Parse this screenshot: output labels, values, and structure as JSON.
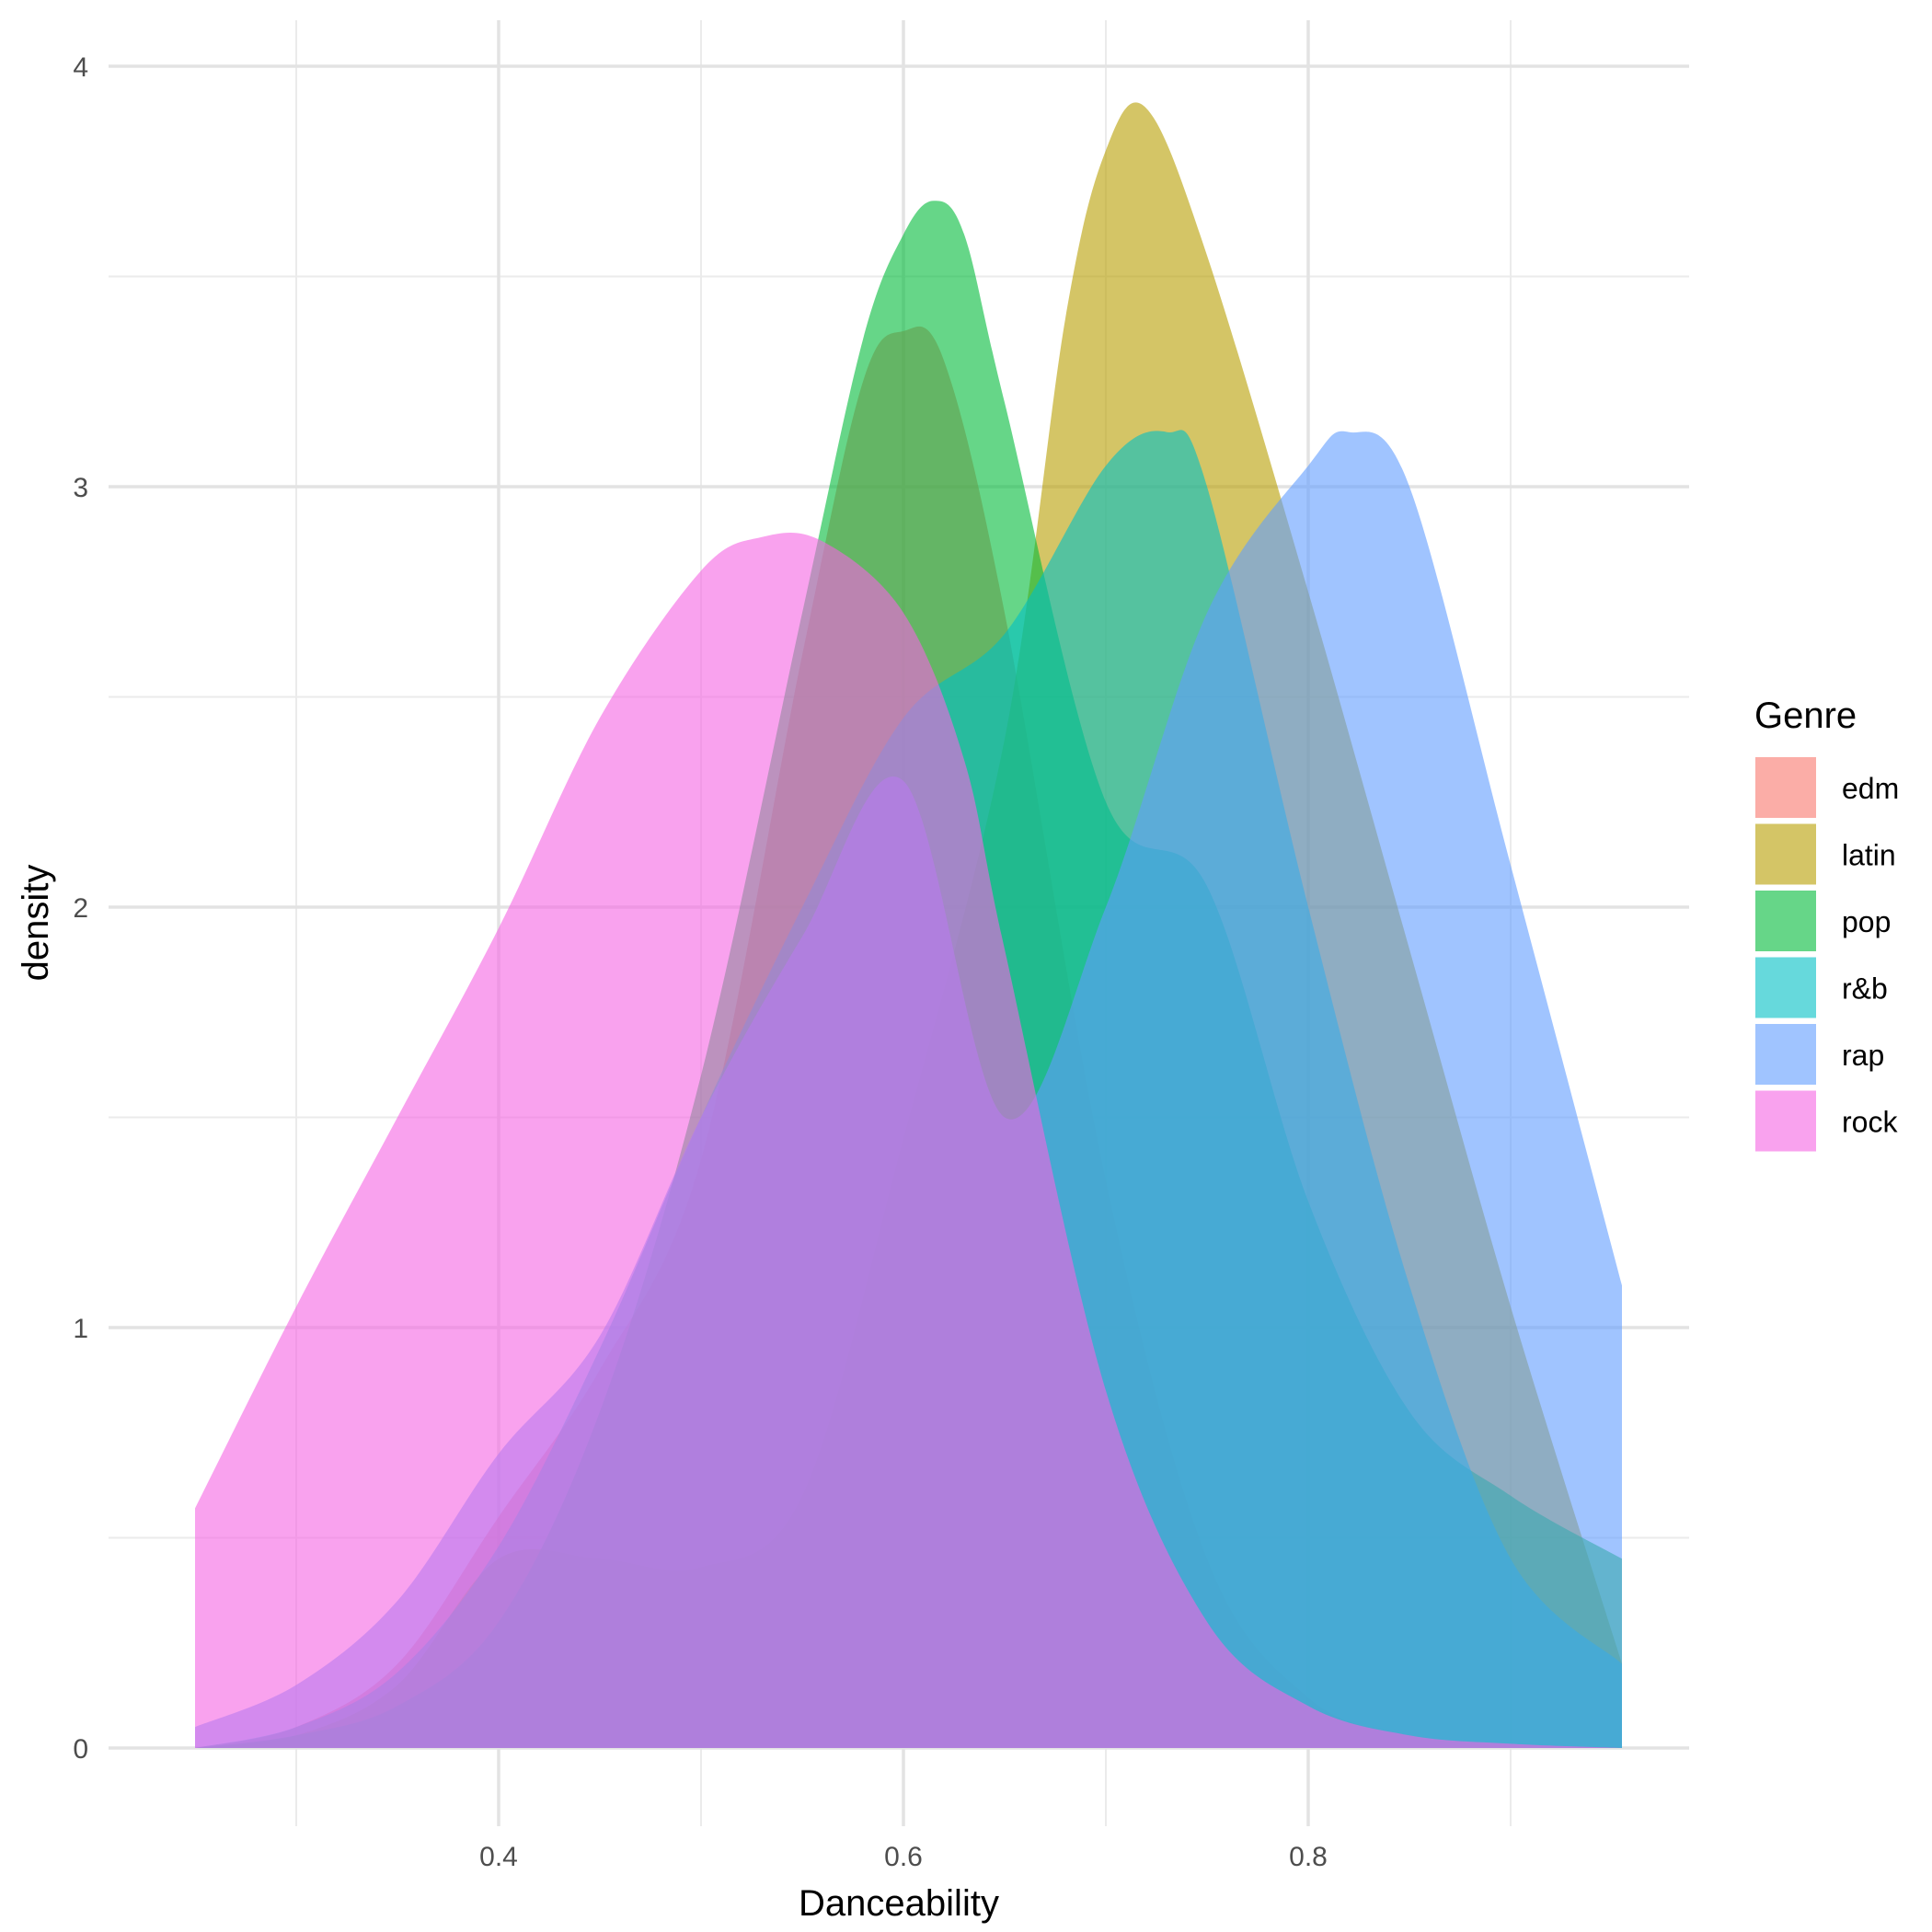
{
  "chart_data": {
    "type": "area",
    "subtype": "density",
    "title": "",
    "xlabel": "Danceability",
    "ylabel": "density",
    "xlim": [
      0.25,
      0.955
    ],
    "ylim": [
      0,
      4
    ],
    "x_ticks": [
      0.4,
      0.6,
      0.8
    ],
    "y_ticks": [
      0,
      1,
      2,
      3,
      4
    ],
    "grid": true,
    "fill_opacity": 0.6,
    "legend": {
      "title": "Genre",
      "position": "right"
    },
    "series": [
      {
        "name": "edm",
        "color": "#F8766D",
        "x": [
          0.25,
          0.3,
          0.35,
          0.4,
          0.45,
          0.5,
          0.55,
          0.58,
          0.6,
          0.62,
          0.65,
          0.7,
          0.75,
          0.8,
          0.85,
          0.9,
          0.955
        ],
        "y": [
          0.0,
          0.05,
          0.2,
          0.55,
          0.9,
          1.4,
          2.6,
          3.25,
          3.37,
          3.3,
          2.7,
          1.35,
          0.45,
          0.12,
          0.03,
          0.01,
          0.0
        ]
      },
      {
        "name": "latin",
        "color": "#B79F00",
        "x": [
          0.25,
          0.3,
          0.35,
          0.4,
          0.45,
          0.5,
          0.55,
          0.6,
          0.65,
          0.68,
          0.7,
          0.72,
          0.75,
          0.8,
          0.85,
          0.9,
          0.955
        ],
        "y": [
          0.0,
          0.03,
          0.15,
          0.45,
          0.45,
          0.43,
          0.6,
          1.45,
          2.4,
          3.4,
          3.8,
          3.9,
          3.55,
          2.75,
          1.9,
          1.05,
          0.2
        ]
      },
      {
        "name": "pop",
        "color": "#00BA38",
        "x": [
          0.25,
          0.3,
          0.35,
          0.4,
          0.45,
          0.5,
          0.55,
          0.58,
          0.6,
          0.615,
          0.63,
          0.65,
          0.7,
          0.75,
          0.8,
          0.85,
          0.9,
          0.955
        ],
        "y": [
          0.0,
          0.03,
          0.1,
          0.3,
          0.8,
          1.6,
          2.7,
          3.35,
          3.6,
          3.68,
          3.6,
          3.2,
          2.25,
          2.05,
          1.3,
          0.8,
          0.6,
          0.45
        ]
      },
      {
        "name": "r&b",
        "color": "#00BFC4",
        "x": [
          0.25,
          0.3,
          0.35,
          0.4,
          0.45,
          0.5,
          0.55,
          0.6,
          0.65,
          0.7,
          0.73,
          0.75,
          0.8,
          0.85,
          0.9,
          0.955
        ],
        "y": [
          0.0,
          0.05,
          0.18,
          0.48,
          0.95,
          1.5,
          2.0,
          2.45,
          2.65,
          3.05,
          3.13,
          3.0,
          2.0,
          1.1,
          0.45,
          0.2
        ]
      },
      {
        "name": "rap",
        "color": "#619CFF",
        "x": [
          0.25,
          0.3,
          0.35,
          0.4,
          0.45,
          0.5,
          0.55,
          0.6,
          0.65,
          0.7,
          0.75,
          0.8,
          0.82,
          0.85,
          0.9,
          0.955
        ],
        "y": [
          0.05,
          0.15,
          0.35,
          0.7,
          0.98,
          1.5,
          1.93,
          2.3,
          1.5,
          2.0,
          2.7,
          3.05,
          3.13,
          3.0,
          2.1,
          1.1
        ]
      },
      {
        "name": "rock",
        "color": "#F564E3",
        "x": [
          0.25,
          0.3,
          0.35,
          0.4,
          0.45,
          0.5,
          0.53,
          0.56,
          0.6,
          0.63,
          0.65,
          0.7,
          0.75,
          0.8,
          0.85,
          0.9,
          0.955
        ],
        "y": [
          0.57,
          1.05,
          1.5,
          1.95,
          2.45,
          2.8,
          2.88,
          2.87,
          2.7,
          2.35,
          1.9,
          0.85,
          0.3,
          0.1,
          0.03,
          0.01,
          0.0
        ]
      }
    ]
  }
}
